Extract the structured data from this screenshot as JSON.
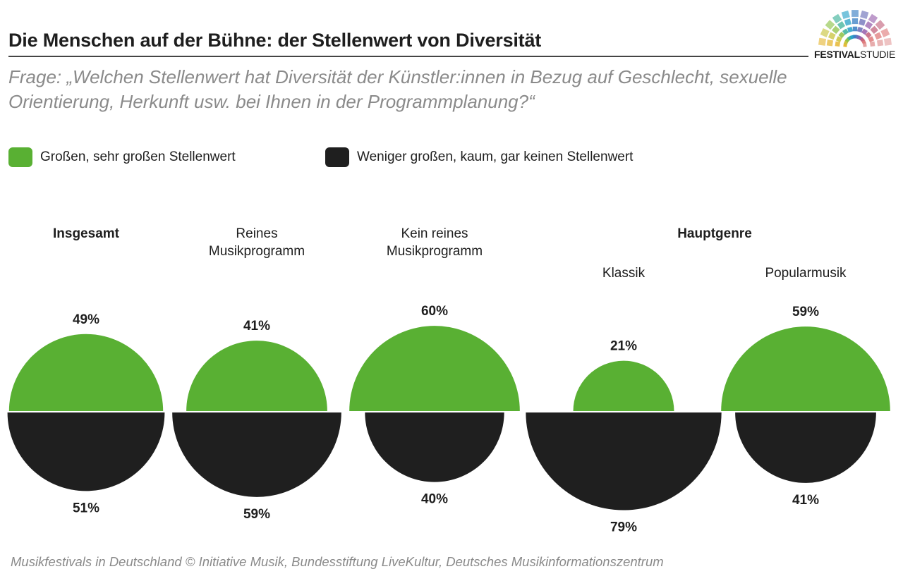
{
  "title": "Die Menschen auf der Bühne: der Stellenwert von Diversität",
  "question": "Frage: „Welchen Stellenwert hat Diversität der Künstler:innen in Bezug auf Geschlecht, sexuelle Orientierung, Herkunft usw. bei Ihnen in der Programmplanung?“",
  "logo": {
    "text_bold": "FESTIVAL",
    "text_regular": "STUDIE",
    "icon": "festival-sunburst-logo"
  },
  "colors": {
    "positive": "#59b033",
    "negative": "#1f1f1f"
  },
  "source": "Musikfestivals in Deutschland © Initiative Musik, Bundesstiftung LiveKultur, Deutsches Musikinformationszentrum",
  "chart_data": {
    "type": "pie",
    "title": "Die Menschen auf der Bühne: der Stellenwert von Diversität",
    "legend": [
      {
        "key": "positive",
        "label": "Großen, sehr großen Stellenwert"
      },
      {
        "key": "negative",
        "label": "Weniger großen, kaum, gar keinen Stellenwert"
      }
    ],
    "section_label": "Hauptgenre",
    "groups": [
      {
        "label": "Insgesamt",
        "bold": true,
        "positive": 49,
        "negative": 51
      },
      {
        "label": "Reines Musikprogramm",
        "bold": false,
        "positive": 41,
        "negative": 59
      },
      {
        "label": "Kein reines Musikprogramm",
        "bold": false,
        "positive": 60,
        "negative": 40
      },
      {
        "label": "Klassik",
        "bold": false,
        "positive": 21,
        "negative": 79
      },
      {
        "label": "Popularmusik",
        "bold": false,
        "positive": 59,
        "negative": 41
      }
    ],
    "value_suffix": "%"
  }
}
